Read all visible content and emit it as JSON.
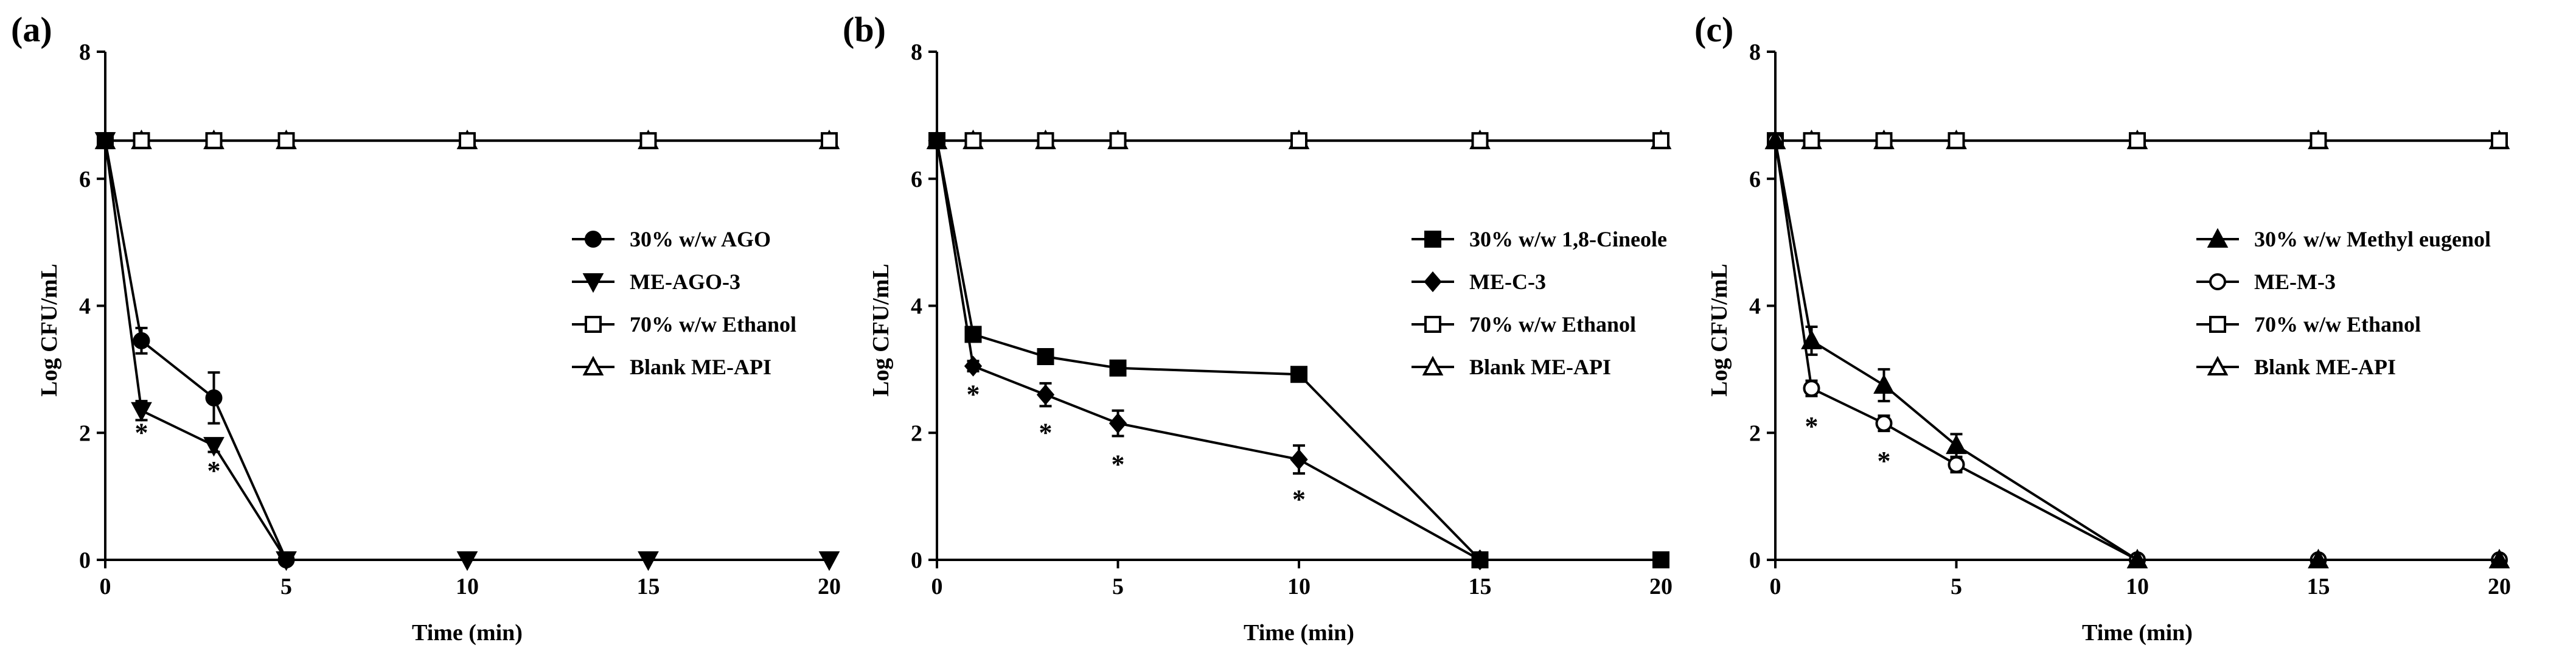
{
  "figure": {
    "panels": [
      {
        "id": "a",
        "label": "(a)"
      },
      {
        "id": "b",
        "label": "(b)"
      },
      {
        "id": "c",
        "label": "(c)"
      }
    ]
  },
  "chart_data": [
    {
      "type": "line",
      "panel": "(a)",
      "xlabel": "Time (min)",
      "ylabel": "Log CFU/mL",
      "xlim": [
        0,
        20
      ],
      "ylim": [
        0,
        8
      ],
      "xticks": [
        0,
        5,
        10,
        15,
        20
      ],
      "yticks": [
        0,
        2,
        4,
        6,
        8
      ],
      "legend_position": "right",
      "series": [
        {
          "name": "30% w/w AGO",
          "marker": "circle",
          "x": [
            0,
            1,
            3,
            5
          ],
          "y": [
            6.6,
            3.45,
            2.55,
            0.0
          ],
          "err": [
            0,
            0.2,
            0.4,
            0
          ]
        },
        {
          "name": "ME-AGO-3",
          "marker": "triangle-down",
          "x": [
            0,
            1,
            3,
            5,
            10,
            15,
            20
          ],
          "y": [
            6.6,
            2.35,
            1.8,
            0.0,
            0.0,
            0.0,
            0.0
          ],
          "err": [
            0,
            0.15,
            0.1,
            0,
            0,
            0,
            0
          ]
        },
        {
          "name": "70% w/w Ethanol",
          "marker": "square-open",
          "x": [
            0,
            1,
            3,
            5,
            10,
            15,
            20
          ],
          "y": [
            6.6,
            6.6,
            6.6,
            6.6,
            6.6,
            6.6,
            6.6
          ],
          "err": [
            0,
            0,
            0,
            0,
            0,
            0,
            0
          ]
        },
        {
          "name": "Blank ME-API",
          "marker": "triangle-up-open",
          "x": [
            0,
            1,
            3,
            5,
            10,
            15,
            20
          ],
          "y": [
            6.6,
            6.6,
            6.6,
            6.6,
            6.6,
            6.6,
            6.6
          ],
          "err": [
            0,
            0,
            0,
            0,
            0,
            0,
            0
          ]
        }
      ],
      "annotations": [
        {
          "text": "*",
          "x": 1,
          "y": 2.0
        },
        {
          "text": "*",
          "x": 3,
          "y": 1.4
        }
      ]
    },
    {
      "type": "line",
      "panel": "(b)",
      "xlabel": "Time (min)",
      "ylabel": "Log CFU/mL",
      "xlim": [
        0,
        20
      ],
      "ylim": [
        0,
        8
      ],
      "xticks": [
        0,
        5,
        10,
        15,
        20
      ],
      "yticks": [
        0,
        2,
        4,
        6,
        8
      ],
      "legend_position": "right",
      "series": [
        {
          "name": "30% w/w 1,8-Cineole",
          "marker": "square",
          "x": [
            0,
            1,
            3,
            5,
            10,
            15,
            20
          ],
          "y": [
            6.6,
            3.55,
            3.2,
            3.02,
            2.92,
            0.0,
            0.0
          ],
          "err": [
            0,
            0.08,
            0.05,
            0.05,
            0.05,
            0,
            0
          ]
        },
        {
          "name": "ME-C-3",
          "marker": "diamond",
          "x": [
            0,
            1,
            3,
            5,
            10,
            15
          ],
          "y": [
            6.6,
            3.05,
            2.6,
            2.15,
            1.58,
            0.0
          ],
          "err": [
            0,
            0.08,
            0.18,
            0.2,
            0.22,
            0
          ]
        },
        {
          "name": "70% w/w Ethanol",
          "marker": "square-open",
          "x": [
            0,
            1,
            3,
            5,
            10,
            15,
            20
          ],
          "y": [
            6.6,
            6.6,
            6.6,
            6.6,
            6.6,
            6.6,
            6.6
          ],
          "err": [
            0,
            0,
            0,
            0,
            0,
            0,
            0
          ]
        },
        {
          "name": "Blank ME-API",
          "marker": "triangle-up-open",
          "x": [
            0,
            1,
            3,
            5,
            10,
            15,
            20
          ],
          "y": [
            6.6,
            6.6,
            6.6,
            6.6,
            6.6,
            6.6,
            6.6
          ],
          "err": [
            0,
            0,
            0,
            0,
            0,
            0,
            0
          ]
        }
      ],
      "annotations": [
        {
          "text": "*",
          "x": 1,
          "y": 2.6
        },
        {
          "text": "*",
          "x": 3,
          "y": 2.0
        },
        {
          "text": "*",
          "x": 5,
          "y": 1.5
        },
        {
          "text": "*",
          "x": 10,
          "y": 0.95
        }
      ]
    },
    {
      "type": "line",
      "panel": "(c)",
      "xlabel": "Time (min)",
      "ylabel": "Log CFU/mL",
      "xlim": [
        0,
        20
      ],
      "ylim": [
        0,
        8
      ],
      "xticks": [
        0,
        5,
        10,
        15,
        20
      ],
      "yticks": [
        0,
        2,
        4,
        6,
        8
      ],
      "legend_position": "right",
      "series": [
        {
          "name": "30% w/w Methyl eugenol",
          "marker": "triangle-up",
          "x": [
            0,
            1,
            3,
            5,
            10,
            15,
            20
          ],
          "y": [
            6.6,
            3.45,
            2.75,
            1.8,
            0.0,
            0.0,
            0.0
          ],
          "err": [
            0,
            0.22,
            0.25,
            0.18,
            0,
            0,
            0
          ]
        },
        {
          "name": "ME-M-3",
          "marker": "circle-open",
          "x": [
            0,
            1,
            3,
            5,
            10,
            15,
            20
          ],
          "y": [
            6.6,
            2.7,
            2.15,
            1.5,
            0.0,
            0.0,
            0.0
          ],
          "err": [
            0,
            0.12,
            0.12,
            0.12,
            0,
            0,
            0
          ]
        },
        {
          "name": "70% w/w Ethanol",
          "marker": "square-open",
          "x": [
            0,
            1,
            3,
            5,
            10,
            15,
            20
          ],
          "y": [
            6.6,
            6.6,
            6.6,
            6.6,
            6.6,
            6.6,
            6.6
          ],
          "err": [
            0,
            0,
            0,
            0,
            0,
            0,
            0
          ]
        },
        {
          "name": "Blank ME-API",
          "marker": "triangle-up-open",
          "x": [
            0,
            1,
            3,
            5,
            10,
            15,
            20
          ],
          "y": [
            6.6,
            6.6,
            6.6,
            6.6,
            6.6,
            6.6,
            6.6
          ],
          "err": [
            0,
            0,
            0,
            0,
            0,
            0,
            0
          ]
        }
      ],
      "annotations": [
        {
          "text": "*",
          "x": 1,
          "y": 2.1
        },
        {
          "text": "*",
          "x": 3,
          "y": 1.55
        }
      ]
    }
  ]
}
